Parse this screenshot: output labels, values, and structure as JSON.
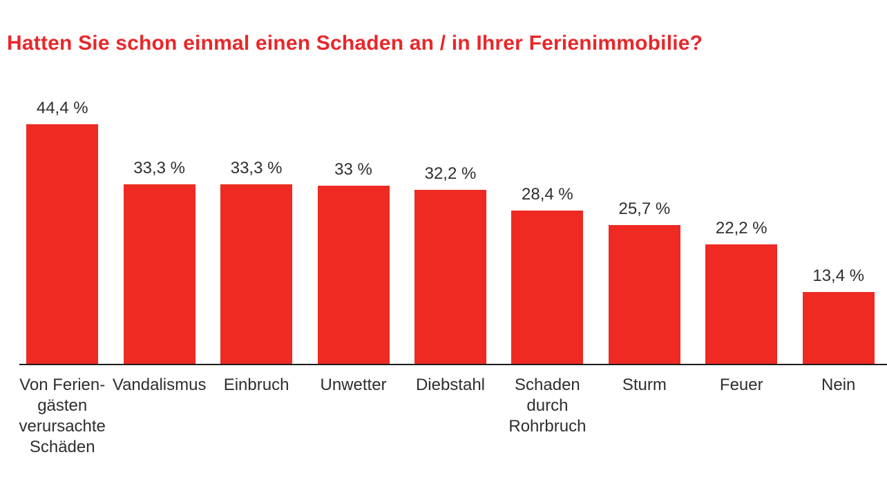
{
  "title": {
    "text": "Hatten Sie schon einmal einen Schaden an / in Ihrer Ferienimmobilie?",
    "color": "#e8272a"
  },
  "chart_data": {
    "type": "bar",
    "title": "Hatten Sie schon einmal einen Schaden an / in Ihrer Ferienimmobilie?",
    "categories": [
      "Von Feriengästen verursachte Schäden",
      "Vandalismus",
      "Einbruch",
      "Unwetter",
      "Diebstahl",
      "Schaden durch Rohrbruch",
      "Sturm",
      "Feuer",
      "Nein"
    ],
    "categories_display": [
      "Von Ferien-\ngästen\nverursachte\nSchäden",
      "Vandalismus",
      "Einbruch",
      "Unwetter",
      "Diebstahl",
      "Schaden\ndurch\nRohrbruch",
      "Sturm",
      "Feuer",
      "Nein"
    ],
    "values": [
      44.4,
      33.3,
      33.3,
      33,
      32.2,
      28.4,
      25.7,
      22.2,
      13.4
    ],
    "value_labels": [
      "44,4 %",
      "33,3 %",
      "33,3 %",
      "33 %",
      "32,2 %",
      "28,4 %",
      "25,7 %",
      "22,2 %",
      "13,4 %"
    ],
    "unit": "%",
    "xlabel": "",
    "ylabel": "",
    "ylim": [
      0,
      50
    ],
    "grid": false,
    "legend": false,
    "bar_color": "#ee2a23",
    "label_color": "#2f2e2d",
    "axis_color": "#1a1a1a"
  }
}
